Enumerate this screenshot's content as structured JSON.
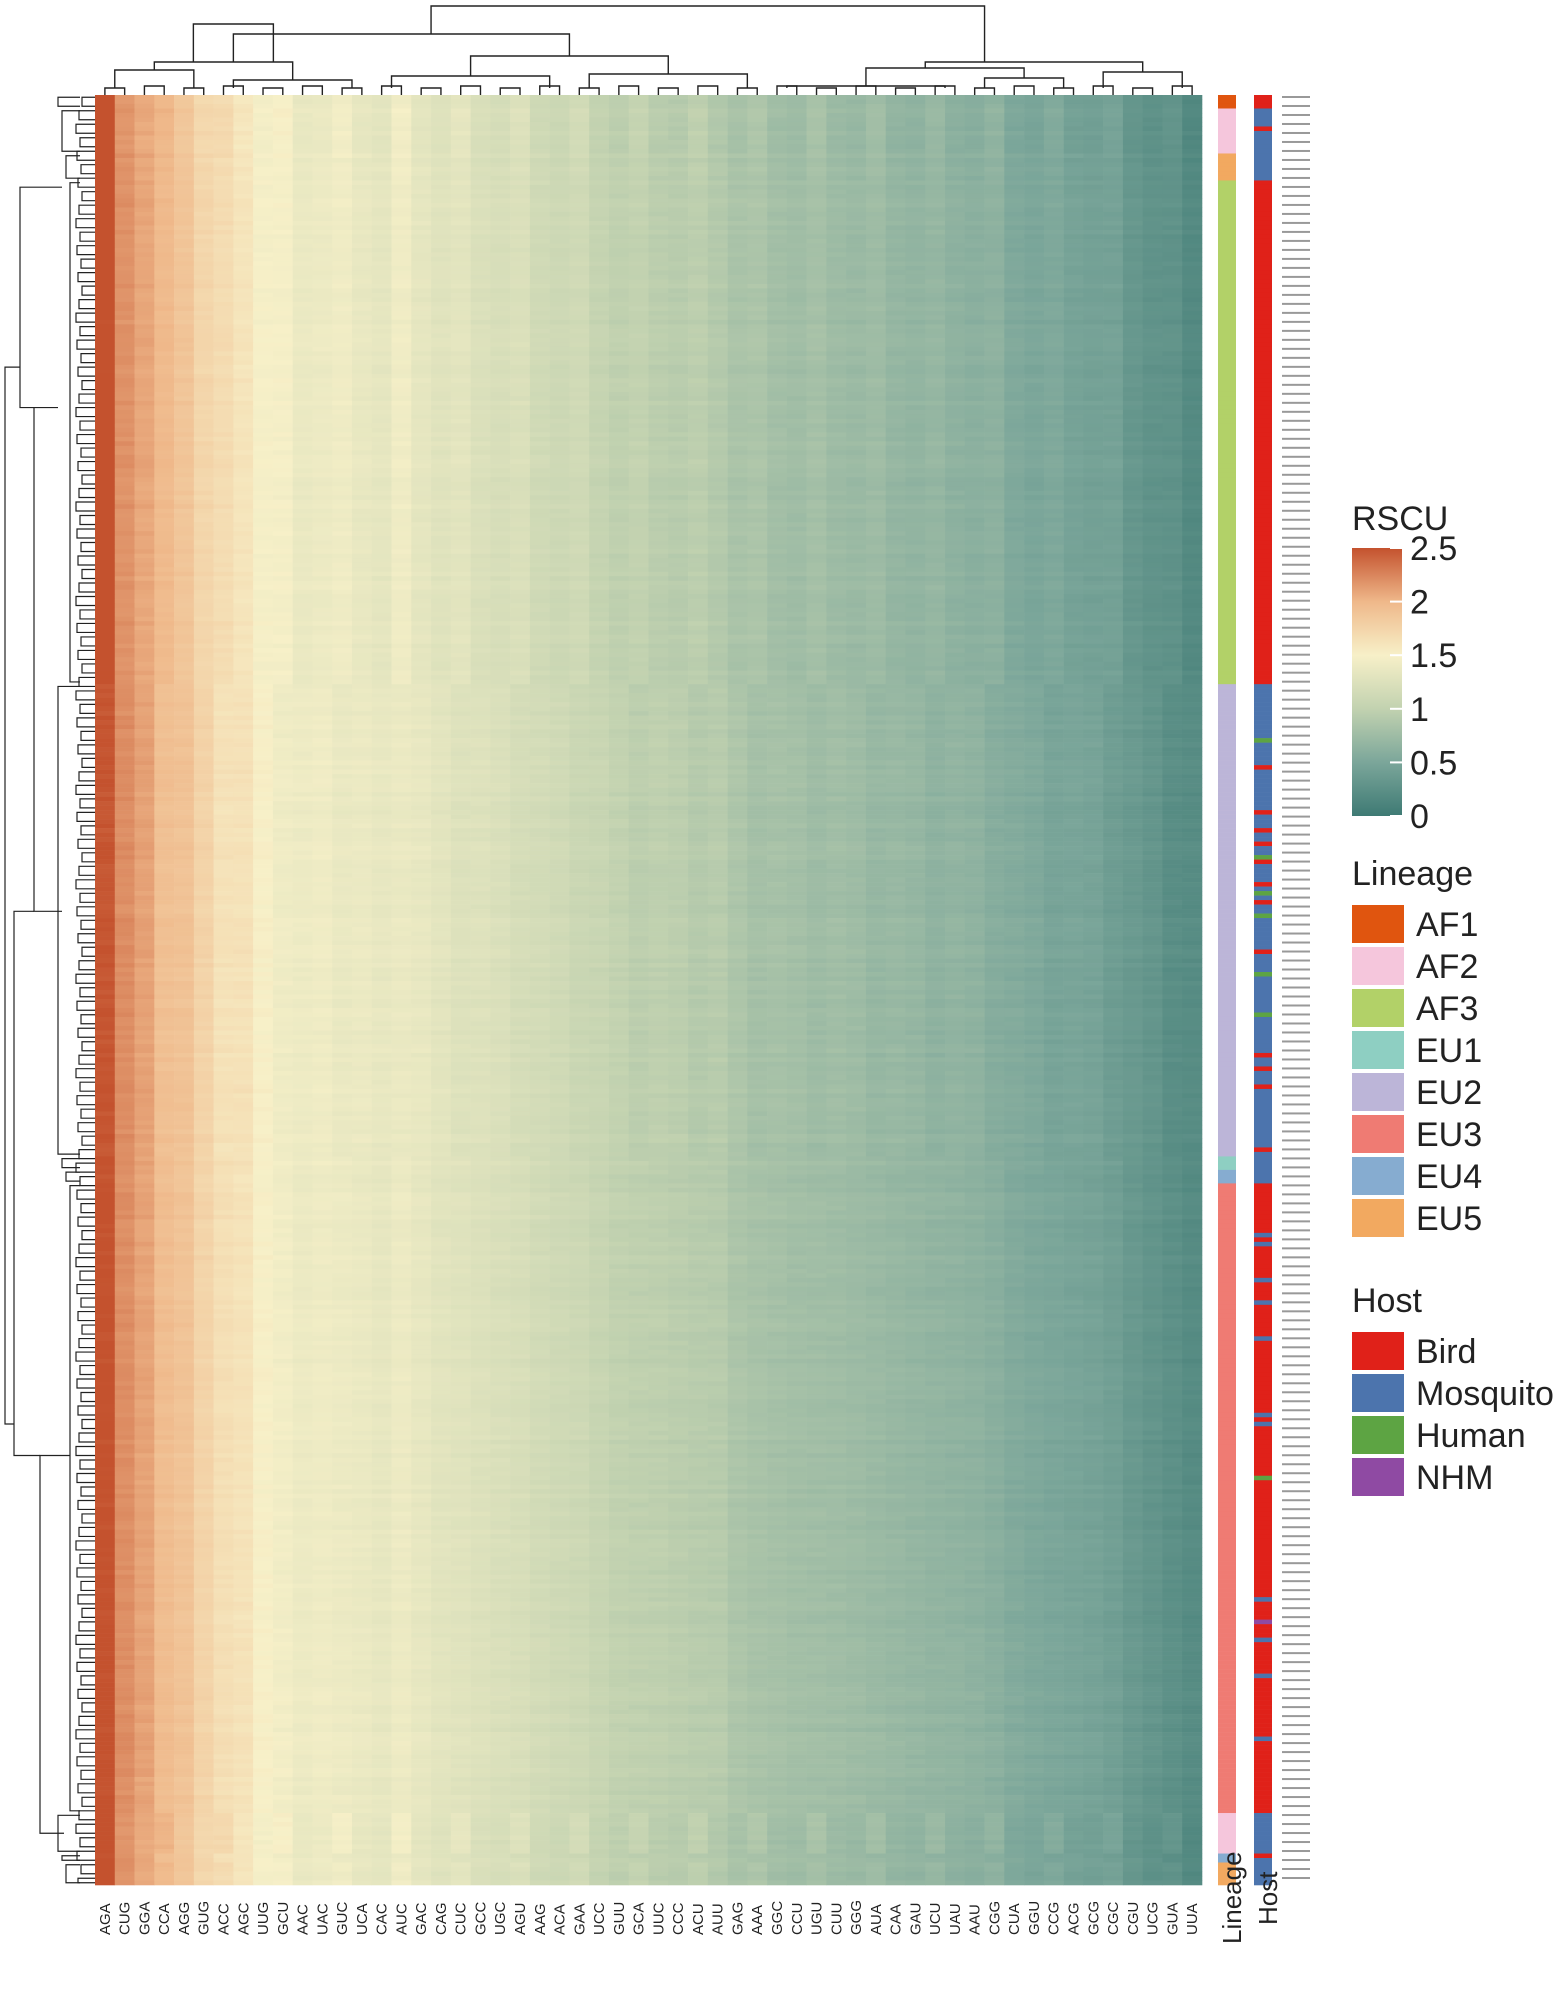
{
  "chart_data": {
    "type": "heatmap",
    "title": "",
    "xlabel": "",
    "ylabel": "",
    "columns": [
      "AGA",
      "CUG",
      "GGA",
      "CCA",
      "AGG",
      "GUG",
      "ACC",
      "AGC",
      "UUG",
      "GCU",
      "AAC",
      "UAC",
      "GUC",
      "UCA",
      "CAC",
      "AUC",
      "GAC",
      "CAG",
      "CUC",
      "GCC",
      "UGC",
      "AGU",
      "AAG",
      "ACA",
      "GAA",
      "UCC",
      "GUU",
      "GCA",
      "UUC",
      "CCC",
      "ACU",
      "AUU",
      "GAG",
      "AAA",
      "GGC",
      "CCU",
      "UGU",
      "CUU",
      "GGG",
      "AUA",
      "CAA",
      "GAU",
      "UCU",
      "UAU",
      "AAU",
      "CGG",
      "CUA",
      "GGU",
      "CCG",
      "ACG",
      "GCG",
      "CGC",
      "CGU",
      "UCG",
      "GUA",
      "UUA"
    ],
    "column_mean_rscu": [
      2.5,
      2.2,
      2.1,
      1.95,
      1.9,
      1.75,
      1.65,
      1.62,
      1.5,
      1.45,
      1.4,
      1.42,
      1.4,
      1.38,
      1.35,
      1.4,
      1.35,
      1.3,
      1.28,
      1.25,
      1.22,
      1.2,
      1.15,
      1.12,
      1.1,
      1.05,
      1.0,
      0.98,
      0.97,
      0.95,
      0.93,
      0.92,
      0.85,
      0.82,
      0.8,
      0.78,
      0.77,
      0.76,
      0.74,
      0.72,
      0.7,
      0.68,
      0.66,
      0.65,
      0.63,
      0.6,
      0.55,
      0.52,
      0.5,
      0.48,
      0.46,
      0.42,
      0.35,
      0.3,
      0.25,
      0.2
    ],
    "row_groups": [
      {
        "lineage": "AF1",
        "rows": 3
      },
      {
        "lineage": "AF2",
        "rows": 10
      },
      {
        "lineage": "EU5",
        "rows": 6
      },
      {
        "lineage": "AF3",
        "rows": 112
      },
      {
        "lineage": "EU2",
        "rows": 105
      },
      {
        "lineage": "EU1",
        "rows": 3
      },
      {
        "lineage": "EU4",
        "rows": 3
      },
      {
        "lineage": "EU3",
        "rows": 140
      },
      {
        "lineage": "AF2",
        "rows": 9
      },
      {
        "lineage": "EU4",
        "rows": 2
      },
      {
        "lineage": "EU5",
        "rows": 5
      }
    ],
    "color_scale": {
      "name": "RSCU",
      "min": 0,
      "max": 2.5,
      "ticks": [
        "2.5",
        "2",
        "1.5",
        "1",
        "0.5",
        "0"
      ],
      "stops": [
        {
          "value": 0,
          "color": "#3e7a74"
        },
        {
          "value": 0.5,
          "color": "#7ba69a"
        },
        {
          "value": 1.0,
          "color": "#c2d2b0"
        },
        {
          "value": 1.5,
          "color": "#f7f0c8"
        },
        {
          "value": 2.0,
          "color": "#efb88a"
        },
        {
          "value": 2.5,
          "color": "#c4522e"
        }
      ]
    },
    "annotation_tracks": [
      "Lineage",
      "Host"
    ],
    "lineage_legend": {
      "title": "Lineage",
      "entries": [
        {
          "label": "AF1",
          "color": "#e0550f"
        },
        {
          "label": "AF2",
          "color": "#f5c6dc"
        },
        {
          "label": "AF3",
          "color": "#b2d168"
        },
        {
          "label": "EU1",
          "color": "#8ecfc2"
        },
        {
          "label": "EU2",
          "color": "#bcb5d8"
        },
        {
          "label": "EU3",
          "color": "#ef7b73"
        },
        {
          "label": "EU4",
          "color": "#86acd0"
        },
        {
          "label": "EU5",
          "color": "#f2a960"
        }
      ]
    },
    "host_legend": {
      "title": "Host",
      "entries": [
        {
          "label": "Bird",
          "color": "#e02119"
        },
        {
          "label": "Mosquito",
          "color": "#4c74ad"
        },
        {
          "label": "Human",
          "color": "#5da443"
        },
        {
          "label": "NHM",
          "color": "#8f4aa3"
        }
      ]
    },
    "dendrograms": {
      "rows": true,
      "columns": true
    },
    "legend_placement": "right"
  }
}
